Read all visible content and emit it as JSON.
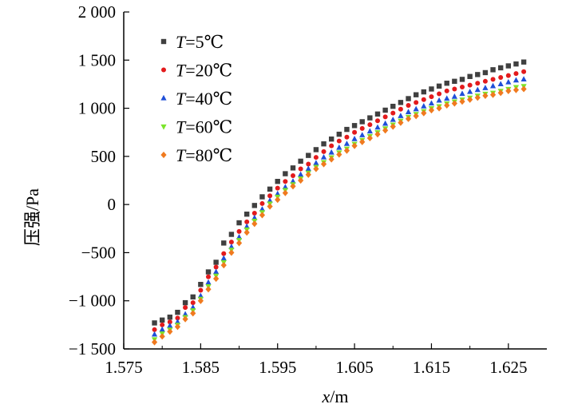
{
  "chart_data": {
    "type": "scatter",
    "xlabel_var": "x",
    "xlabel_unit": "/m",
    "ylabel": "压强/Pa",
    "xlim": [
      1.575,
      1.63
    ],
    "ylim": [
      -1500,
      2000
    ],
    "x_ticks": [
      1.575,
      1.585,
      1.595,
      1.605,
      1.615,
      1.625
    ],
    "x_tick_labels": [
      "1.575",
      "1.585",
      "1.595",
      "1.605",
      "1.615",
      "1.625"
    ],
    "y_ticks": [
      -1500,
      -1000,
      -500,
      0,
      500,
      1000,
      1500,
      2000
    ],
    "y_tick_labels": [
      "−1 500",
      "−1 000",
      "−500",
      "0",
      "500",
      "1 000",
      "1 500",
      "2 000"
    ],
    "x": [
      1.579,
      1.58,
      1.581,
      1.582,
      1.583,
      1.584,
      1.585,
      1.586,
      1.587,
      1.588,
      1.589,
      1.59,
      1.591,
      1.592,
      1.593,
      1.594,
      1.595,
      1.596,
      1.597,
      1.598,
      1.599,
      1.6,
      1.601,
      1.602,
      1.603,
      1.604,
      1.605,
      1.606,
      1.607,
      1.608,
      1.609,
      1.61,
      1.611,
      1.612,
      1.613,
      1.614,
      1.615,
      1.616,
      1.617,
      1.618,
      1.619,
      1.62,
      1.621,
      1.622,
      1.623,
      1.624,
      1.625,
      1.626,
      1.627
    ],
    "series": [
      {
        "name": "T=5℃",
        "var": "T",
        "label_rest": "=5℃",
        "marker": "square",
        "color": "#404040",
        "values": [
          -1230,
          -1200,
          -1170,
          -1120,
          -1020,
          -960,
          -830,
          -700,
          -600,
          -400,
          -310,
          -190,
          -100,
          -10,
          80,
          160,
          240,
          320,
          380,
          450,
          510,
          570,
          630,
          680,
          730,
          780,
          820,
          860,
          900,
          940,
          980,
          1020,
          1060,
          1100,
          1140,
          1170,
          1200,
          1230,
          1260,
          1280,
          1300,
          1330,
          1350,
          1370,
          1400,
          1420,
          1440,
          1460,
          1480
        ]
      },
      {
        "name": "T=20℃",
        "var": "T",
        "label_rest": "=20℃",
        "marker": "circle",
        "color": "#e31a1c",
        "values": [
          -1300,
          -1250,
          -1220,
          -1180,
          -1070,
          -1020,
          -890,
          -750,
          -650,
          -510,
          -390,
          -280,
          -180,
          -90,
          10,
          90,
          170,
          240,
          300,
          370,
          420,
          490,
          550,
          610,
          660,
          700,
          750,
          790,
          830,
          870,
          910,
          950,
          990,
          1030,
          1060,
          1090,
          1120,
          1150,
          1180,
          1200,
          1220,
          1240,
          1260,
          1280,
          1300,
          1320,
          1340,
          1360,
          1380
        ]
      },
      {
        "name": "T=40℃",
        "var": "T",
        "label_rest": "=40℃",
        "marker": "triangle-up",
        "color": "#1f4fd8",
        "values": [
          -1350,
          -1300,
          -1260,
          -1220,
          -1140,
          -1070,
          -950,
          -810,
          -700,
          -560,
          -440,
          -340,
          -230,
          -140,
          -50,
          40,
          110,
          180,
          240,
          310,
          370,
          430,
          490,
          540,
          590,
          630,
          680,
          720,
          760,
          800,
          840,
          880,
          920,
          960,
          990,
          1020,
          1050,
          1080,
          1100,
          1120,
          1150,
          1170,
          1190,
          1210,
          1230,
          1250,
          1270,
          1290,
          1300
        ]
      },
      {
        "name": "T=60℃",
        "var": "T",
        "label_rest": "=60℃",
        "marker": "triangle-down",
        "color": "#7be52a",
        "values": [
          -1400,
          -1340,
          -1300,
          -1250,
          -1170,
          -1100,
          -980,
          -850,
          -740,
          -600,
          -470,
          -370,
          -260,
          -170,
          -80,
          10,
          80,
          150,
          210,
          270,
          330,
          390,
          440,
          490,
          540,
          580,
          630,
          670,
          710,
          750,
          790,
          830,
          870,
          910,
          940,
          970,
          1000,
          1020,
          1050,
          1070,
          1090,
          1110,
          1130,
          1150,
          1160,
          1180,
          1200,
          1220,
          1230
        ]
      },
      {
        "name": "T=80℃",
        "var": "T",
        "label_rest": "=80℃",
        "marker": "diamond",
        "color": "#f07a1f",
        "values": [
          -1430,
          -1370,
          -1320,
          -1270,
          -1190,
          -1130,
          -1000,
          -880,
          -770,
          -630,
          -500,
          -400,
          -290,
          -200,
          -110,
          -20,
          50,
          120,
          190,
          250,
          310,
          370,
          420,
          470,
          520,
          560,
          610,
          650,
          690,
          730,
          770,
          810,
          850,
          890,
          920,
          950,
          980,
          1000,
          1030,
          1050,
          1070,
          1090,
          1110,
          1130,
          1140,
          1160,
          1180,
          1190,
          1200
        ]
      }
    ],
    "legend_position": "top-left"
  }
}
